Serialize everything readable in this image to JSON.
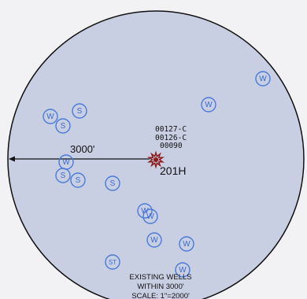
{
  "map": {
    "background_color": "#f2f2f4",
    "circle_fill": "#c9cfe3",
    "well_color": "#4a7ad8",
    "marker_color": "#8b1a1a",
    "radius_label": "3000'",
    "subject_well": {
      "name": "201H",
      "marker_icon": "wellhead-star-icon",
      "permit_numbers": [
        "00127-C",
        "00126-C",
        "00090"
      ]
    },
    "legend": {
      "line1": "EXISTING WELLS",
      "line2": "WITHIN 3000'",
      "line3": "SCALE: 1\"=2000'"
    },
    "wells": [
      {
        "label": "W"
      },
      {
        "label": "W"
      },
      {
        "label": "S"
      },
      {
        "label": "W"
      },
      {
        "label": "S"
      },
      {
        "label": "W"
      },
      {
        "label": "S"
      },
      {
        "label": "S"
      },
      {
        "label": "S"
      },
      {
        "label": "W"
      },
      {
        "label": "W"
      },
      {
        "label": "W"
      },
      {
        "label": "W"
      },
      {
        "label": "ST"
      },
      {
        "label": "W"
      }
    ]
  }
}
